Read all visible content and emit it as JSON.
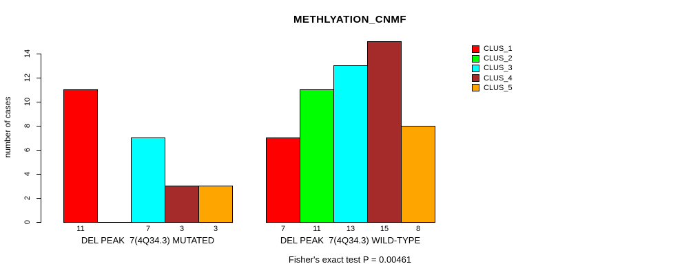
{
  "page": {
    "title": "METHLYATION_CNMF",
    "subtitle": "Fisher's exact test P = 0.00461",
    "ylabel": "number of cases"
  },
  "chart_data": {
    "type": "bar",
    "title": "METHLYATION_CNMF",
    "xlabel": "",
    "ylabel": "number of cases",
    "ylim": [
      0,
      14
    ],
    "yticks": [
      0,
      2,
      4,
      6,
      8,
      10,
      12,
      14
    ],
    "grid": false,
    "legend_position": "right",
    "series": [
      {
        "name": "CLUS_1",
        "color": "#FF0000"
      },
      {
        "name": "CLUS_2",
        "color": "#00FF00"
      },
      {
        "name": "CLUS_3",
        "color": "#00FFFF"
      },
      {
        "name": "CLUS_4",
        "color": "#A52A2A"
      },
      {
        "name": "CLUS_5",
        "color": "#FFA500"
      }
    ],
    "groups": [
      {
        "label": "DEL PEAK  7(4Q34.3) MUTATED",
        "values": [
          11,
          0,
          7,
          3,
          3
        ]
      },
      {
        "label": "DEL PEAK  7(4Q34.3) WILD-TYPE",
        "values": [
          7,
          11,
          13,
          15,
          8
        ]
      }
    ],
    "bar_value_labels_shown": true,
    "annotation": "Fisher's exact test P = 0.00461"
  }
}
